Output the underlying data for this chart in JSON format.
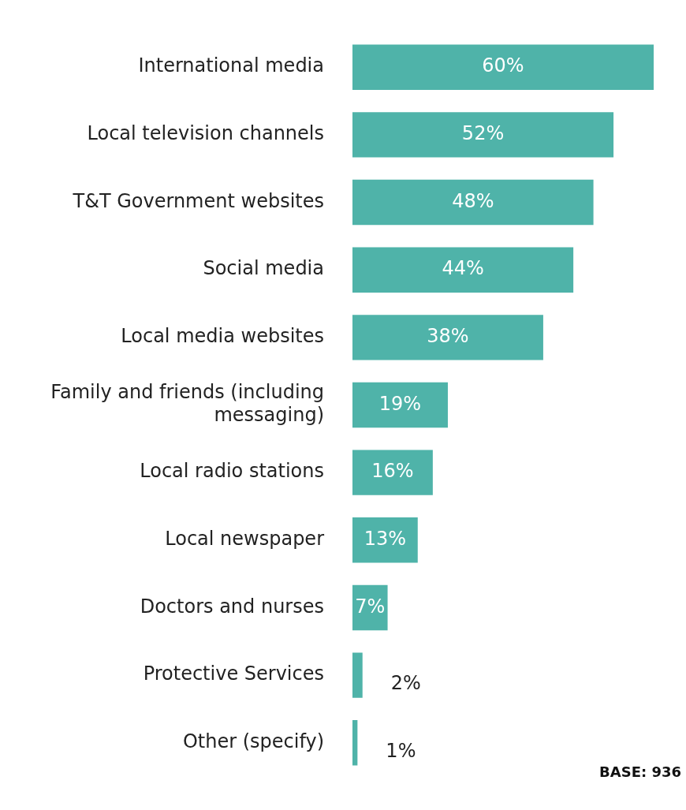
{
  "chart_data": {
    "type": "bar",
    "orientation": "horizontal",
    "categories": [
      "International media",
      "Local television channels",
      "T&T Government websites",
      "Social media",
      "Local media websites",
      "Family and friends (including messaging)",
      "Local radio stations",
      "Local newspaper",
      "Doctors and nurses",
      "Protective Services",
      "Other (specify)"
    ],
    "values": [
      60,
      52,
      48,
      44,
      38,
      19,
      16,
      13,
      7,
      2,
      1
    ],
    "value_labels": [
      "60%",
      "52%",
      "48%",
      "44%",
      "38%",
      "19%",
      "16%",
      "13%",
      "7%",
      "2%",
      "1%"
    ],
    "color": "#4fb3a9",
    "xlim": [
      0,
      60
    ],
    "tick_labels": "y",
    "legend": false,
    "annotations": [
      "BASE: 936"
    ]
  }
}
